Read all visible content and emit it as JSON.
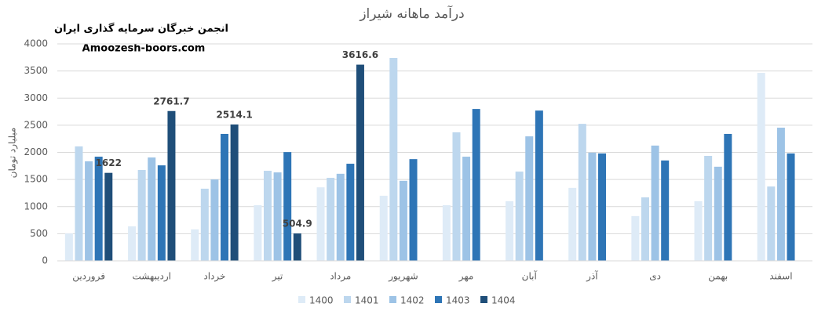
{
  "chart_data": {
    "type": "bar",
    "title": "درآمد ماهانه شیراز",
    "annotations": [
      "انجمن خبرگان سرمایه گذاری ایران",
      "Amoozesh-boors.com"
    ],
    "y_label": "میلیارد تومان",
    "categories": [
      "فروردین",
      "اردیبهشت",
      "خرداد",
      "تیر",
      "مرداد",
      "شهریور",
      "مهر",
      "آبان",
      "آذر",
      "دی",
      "بهمن",
      "اسفند"
    ],
    "series": [
      {
        "name": "1400",
        "color": "#deebf7",
        "values": [
          505,
          635,
          580,
          1025,
          1355,
          1200,
          1025,
          1100,
          1345,
          825,
          1100,
          3465
        ]
      },
      {
        "name": "1401",
        "color": "#bdd7ee",
        "values": [
          2110,
          1675,
          1330,
          1660,
          1530,
          3740,
          2370,
          1645,
          2525,
          1170,
          1935,
          1370
        ]
      },
      {
        "name": "1402",
        "color": "#9dc3e6",
        "values": [
          1835,
          1905,
          1500,
          1630,
          1605,
          1475,
          1920,
          2295,
          1995,
          2125,
          1735,
          2455
        ]
      },
      {
        "name": "1403",
        "color": "#2e75b6",
        "values": [
          1920,
          1760,
          2340,
          2005,
          1790,
          1875,
          2800,
          2770,
          1980,
          1850,
          2340,
          1980
        ]
      },
      {
        "name": "1404",
        "color": "#1f4e79",
        "values": [
          1622,
          2761.7,
          2514.1,
          504.9,
          3616.6,
          null,
          null,
          null,
          null,
          null,
          null,
          null
        ],
        "show_labels": true
      }
    ],
    "ylim": [
      0,
      4000
    ],
    "yticks": [
      0,
      500,
      1000,
      1500,
      2000,
      2500,
      3000,
      3500,
      4000
    ],
    "grid": true,
    "legend": "bottom"
  }
}
